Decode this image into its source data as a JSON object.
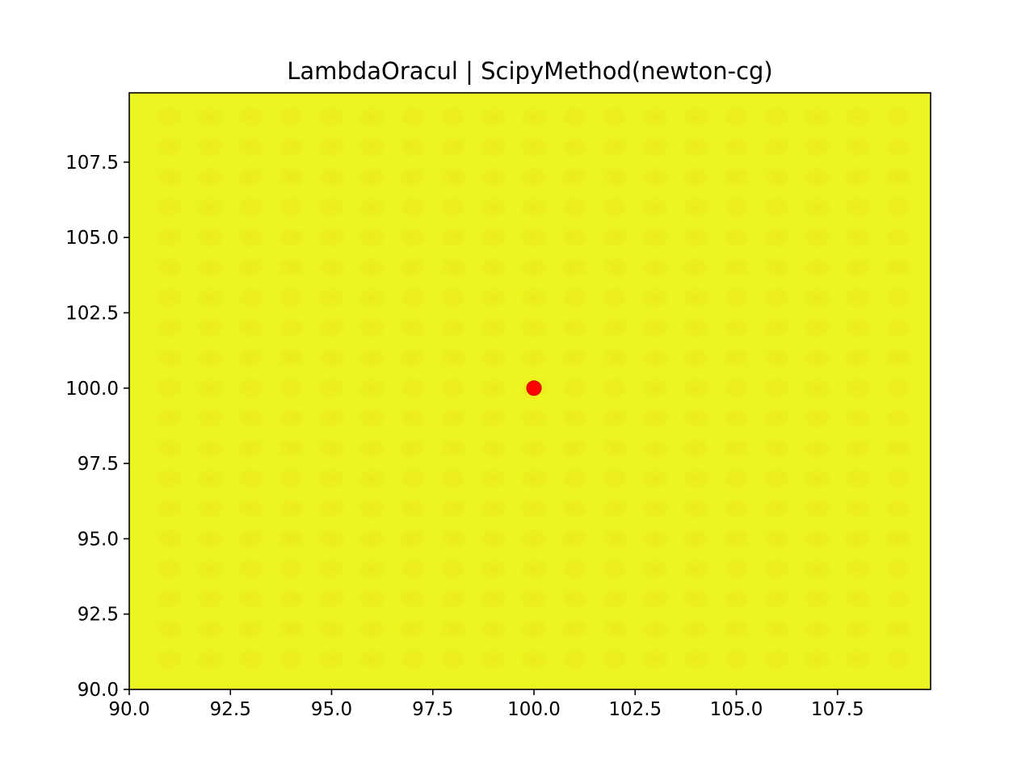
{
  "chart_data": {
    "type": "heatmap",
    "title": "LambdaOracul | ScipyMethod(newton-cg)",
    "xlabel": "",
    "ylabel": "",
    "xlim": [
      90.0,
      109.8
    ],
    "ylim": [
      90.0,
      109.8
    ],
    "x_ticks": [
      90.0,
      92.5,
      95.0,
      97.5,
      100.0,
      102.5,
      105.0,
      107.5
    ],
    "y_ticks": [
      90.0,
      92.5,
      95.0,
      97.5,
      100.0,
      102.5,
      105.0,
      107.5
    ],
    "x_tick_labels": [
      "90.0",
      "92.5",
      "95.0",
      "97.5",
      "100.0",
      "102.5",
      "105.0",
      "107.5"
    ],
    "y_tick_labels": [
      "90.0",
      "92.5",
      "95.0",
      "97.5",
      "100.0",
      "102.5",
      "105.0",
      "107.5"
    ],
    "grid": false,
    "legend": "none",
    "heatmap": {
      "background_color": "#ecf51f",
      "cell_color": "#eceb1c",
      "x_centers": [
        91,
        92,
        93,
        94,
        95,
        96,
        97,
        98,
        99,
        100,
        101,
        102,
        103,
        104,
        105,
        106,
        107,
        108,
        109
      ],
      "y_centers": [
        91,
        92,
        93,
        94,
        95,
        96,
        97,
        98,
        99,
        100,
        101,
        102,
        103,
        104,
        105,
        106,
        107,
        108,
        109
      ]
    },
    "points": [
      {
        "x": 100.0,
        "y": 100.0,
        "color": "#ff0000"
      }
    ]
  }
}
